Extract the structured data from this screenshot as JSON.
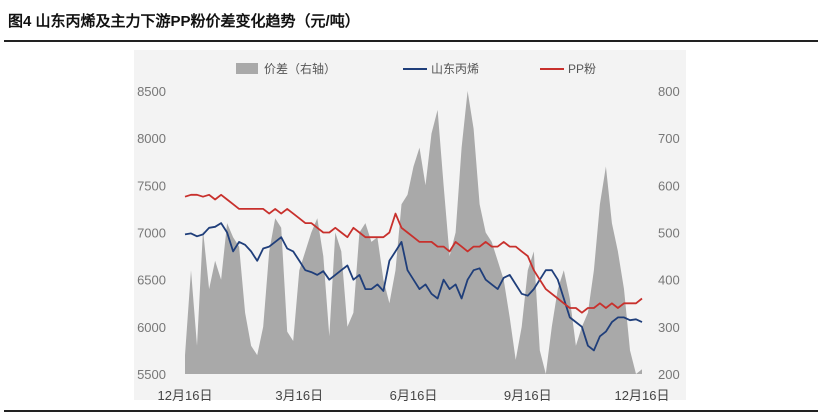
{
  "title": "图4 山东丙烯及主力下游PP粉价差变化趋势（元/吨）",
  "chart_data": {
    "type": "line",
    "title": "图4 山东丙烯及主力下游PP粉价差变化趋势（元/吨）",
    "x_ticks": [
      "12月16日",
      "3月16日",
      "6月16日",
      "9月16日",
      "12月16日"
    ],
    "y_left": {
      "range": [
        5500,
        8500
      ],
      "ticks": [
        5500,
        6000,
        6500,
        7000,
        7500,
        8000,
        8500
      ]
    },
    "y_right": {
      "range": [
        200,
        800
      ],
      "ticks": [
        200,
        300,
        400,
        500,
        600,
        700,
        800
      ]
    },
    "legend_placement": "top",
    "series": [
      {
        "name": "价差（右轴）",
        "type": "area",
        "axis": "right",
        "color": "#a9a9a9",
        "values": [
          240,
          420,
          260,
          505,
          380,
          440,
          400,
          520,
          490,
          470,
          330,
          260,
          240,
          300,
          460,
          530,
          510,
          290,
          270,
          420,
          460,
          500,
          530,
          450,
          280,
          500,
          460,
          300,
          330,
          500,
          520,
          480,
          490,
          400,
          350,
          420,
          560,
          580,
          640,
          680,
          600,
          710,
          760,
          600,
          450,
          500,
          680,
          800,
          720,
          560,
          500,
          480,
          440,
          400,
          320,
          230,
          300,
          420,
          460,
          250,
          200,
          300,
          380,
          420,
          360,
          260,
          300,
          330,
          420,
          560,
          640,
          520,
          460,
          380,
          250,
          200,
          210
        ]
      },
      {
        "name": "山东丙烯",
        "type": "line",
        "axis": "left",
        "color": "#1f3e7a",
        "values": [
          6980,
          6990,
          6960,
          6980,
          7050,
          7060,
          7100,
          7000,
          6800,
          6900,
          6870,
          6800,
          6700,
          6830,
          6850,
          6900,
          6950,
          6830,
          6800,
          6700,
          6600,
          6580,
          6550,
          6590,
          6500,
          6550,
          6600,
          6650,
          6500,
          6550,
          6400,
          6400,
          6450,
          6380,
          6700,
          6800,
          6900,
          6600,
          6500,
          6400,
          6450,
          6350,
          6300,
          6500,
          6400,
          6450,
          6300,
          6500,
          6600,
          6620,
          6500,
          6450,
          6400,
          6520,
          6550,
          6450,
          6350,
          6330,
          6400,
          6500,
          6600,
          6600,
          6500,
          6300,
          6100,
          6050,
          6000,
          5800,
          5750,
          5900,
          5950,
          6050,
          6100,
          6100,
          6070,
          6080,
          6050
        ]
      },
      {
        "name": "PP粉",
        "type": "line",
        "axis": "left",
        "color": "#c8302c",
        "values": [
          7380,
          7400,
          7400,
          7380,
          7400,
          7350,
          7400,
          7350,
          7300,
          7250,
          7250,
          7250,
          7250,
          7250,
          7200,
          7250,
          7200,
          7250,
          7200,
          7150,
          7100,
          7100,
          7050,
          7000,
          7000,
          7050,
          7000,
          6950,
          7050,
          7000,
          6950,
          6950,
          6950,
          6950,
          7000,
          7200,
          7050,
          7000,
          6950,
          6900,
          6900,
          6900,
          6850,
          6850,
          6800,
          6900,
          6850,
          6800,
          6850,
          6850,
          6900,
          6850,
          6850,
          6900,
          6850,
          6850,
          6800,
          6750,
          6600,
          6500,
          6400,
          6350,
          6300,
          6250,
          6200,
          6200,
          6150,
          6200,
          6200,
          6250,
          6200,
          6250,
          6200,
          6250,
          6250,
          6250,
          6300
        ]
      }
    ]
  }
}
